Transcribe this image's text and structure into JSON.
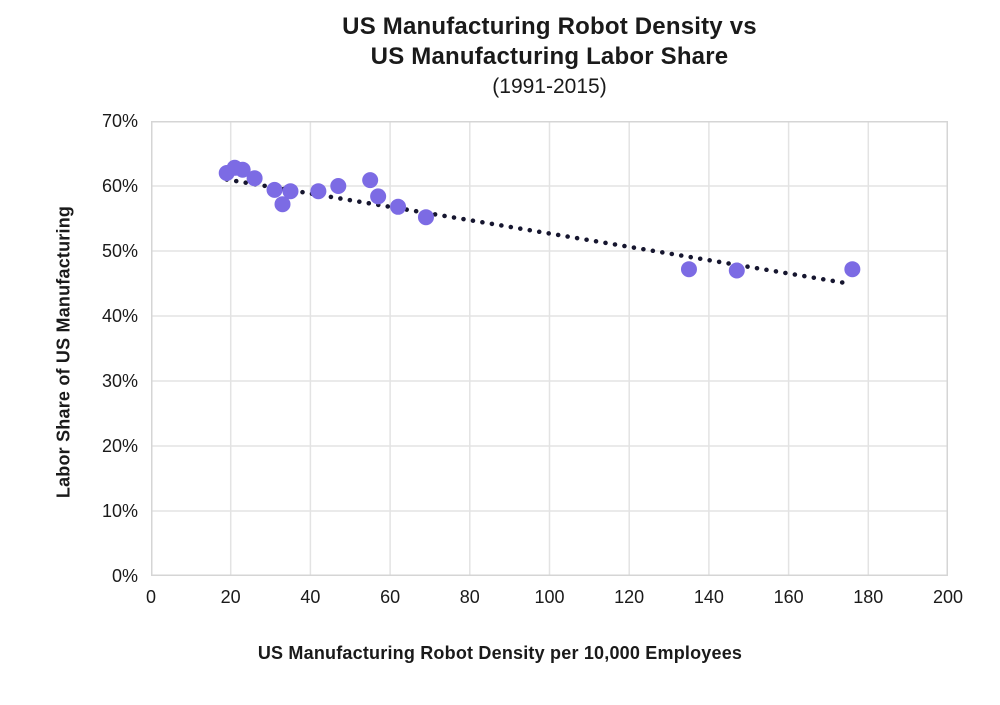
{
  "chart_data": {
    "type": "scatter",
    "title_line1": "US Manufacturing Robot Density vs",
    "title_line2": "US Manufacturing Labor Share",
    "subtitle": "(1991-2015)",
    "xlabel": "US Manufacturing Robot Density per 10,000 Employees",
    "ylabel": "Labor Share of US Manufacturing",
    "xlim": [
      0,
      200
    ],
    "ylim": [
      0,
      70
    ],
    "xticks": [
      0,
      20,
      40,
      60,
      80,
      100,
      120,
      140,
      160,
      180,
      200
    ],
    "yticks": [
      0,
      10,
      20,
      30,
      40,
      50,
      60,
      70
    ],
    "ytick_suffix": "%",
    "grid": true,
    "legend": "none",
    "points": [
      {
        "x": 19,
        "y": 62.0
      },
      {
        "x": 21,
        "y": 62.8
      },
      {
        "x": 23,
        "y": 62.5
      },
      {
        "x": 26,
        "y": 61.2
      },
      {
        "x": 31,
        "y": 59.4
      },
      {
        "x": 33,
        "y": 57.2
      },
      {
        "x": 35,
        "y": 59.2
      },
      {
        "x": 42,
        "y": 59.2
      },
      {
        "x": 47,
        "y": 60.0
      },
      {
        "x": 55,
        "y": 60.9
      },
      {
        "x": 57,
        "y": 58.4
      },
      {
        "x": 62,
        "y": 56.8
      },
      {
        "x": 69,
        "y": 55.2
      },
      {
        "x": 135,
        "y": 47.2
      },
      {
        "x": 147,
        "y": 47.0
      },
      {
        "x": 176,
        "y": 47.2
      }
    ],
    "trendline": {
      "style": "dotted",
      "x1": 19,
      "y1": 61.0,
      "x2": 175,
      "y2": 45.0
    },
    "colors": {
      "point": "#7C6BE4",
      "trendline": "#16162F",
      "grid": "#E3E3E3",
      "plot_border": "#D5D5D5",
      "text": "#1A1A1A",
      "background": "#FFFFFF"
    },
    "marker_radius_px": 8
  }
}
